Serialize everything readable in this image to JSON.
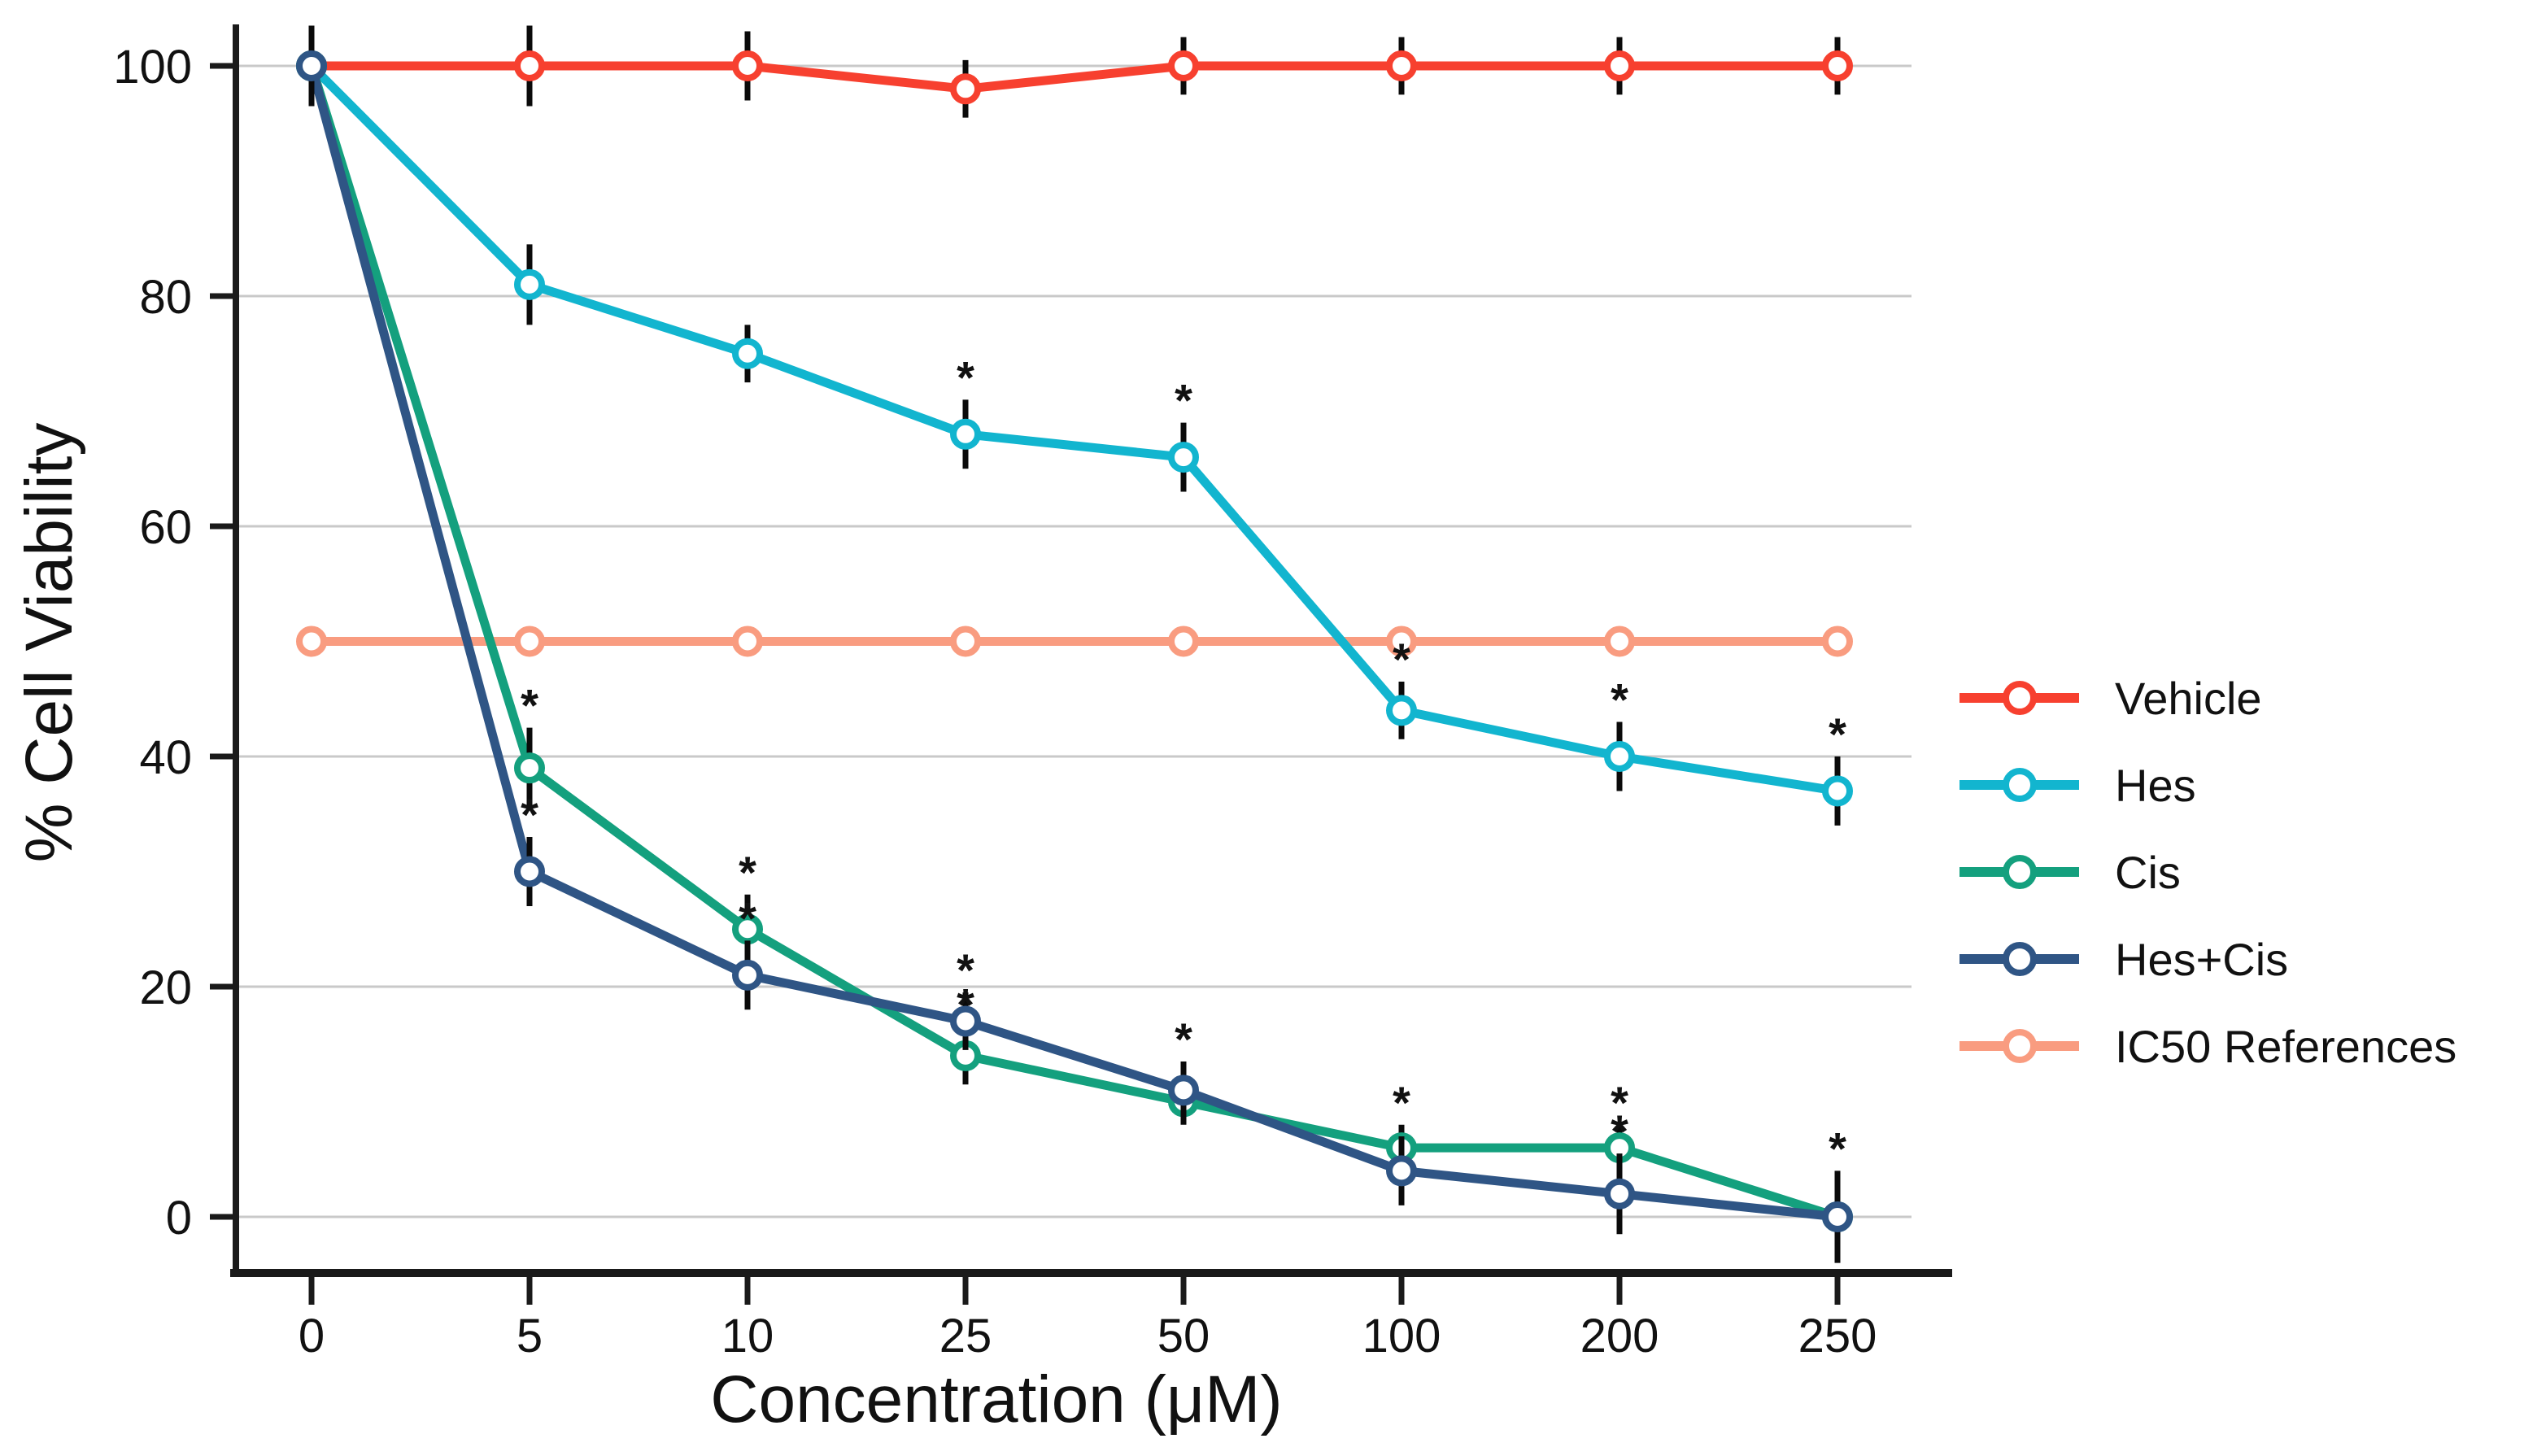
{
  "chart_data": {
    "type": "line",
    "title": "",
    "xlabel": "Concentration (μM)",
    "ylabel": "% Cell Viability",
    "x_categories": [
      "0",
      "5",
      "10",
      "25",
      "50",
      "100",
      "200",
      "250"
    ],
    "y_ticks": [
      0,
      20,
      40,
      60,
      80,
      100
    ],
    "ylim": [
      0,
      100
    ],
    "grid": "horizontal",
    "legend_position": "right",
    "significance_marker": "*",
    "colors": {
      "background": "#FFFFFF",
      "axis": "#1A1A1A",
      "grid": "#C9C9C9",
      "error_bar": "#0A0A0A",
      "star": "#111111"
    },
    "series": [
      {
        "name": "Vehicle",
        "color": "#F7402F",
        "values": [
          100,
          100,
          100,
          98,
          100,
          100,
          100,
          100
        ],
        "errors": [
          3.5,
          3.5,
          3,
          2.5,
          2.5,
          2.5,
          2.5,
          2.5
        ],
        "stars": []
      },
      {
        "name": "Hes",
        "color": "#12B5CF",
        "values": [
          100,
          81,
          75,
          68,
          66,
          44,
          40,
          37
        ],
        "errors": [
          3.5,
          3.5,
          2.5,
          3,
          3,
          2.5,
          3,
          3
        ],
        "stars": [
          3,
          4,
          5,
          6,
          7
        ]
      },
      {
        "name": "Cis",
        "color": "#14A07E",
        "values": [
          100,
          39,
          25,
          14,
          10,
          6,
          6,
          0
        ],
        "errors": [
          3.5,
          3.5,
          3,
          2.5,
          2,
          2,
          2,
          2.5
        ],
        "stars": [
          1,
          2,
          3,
          5,
          6
        ]
      },
      {
        "name": "Hes+Cis",
        "color": "#2F5585",
        "values": [
          100,
          30,
          21,
          17,
          11,
          4,
          2,
          0
        ],
        "errors": [
          3.5,
          3,
          3,
          2.5,
          2.5,
          3,
          3.5,
          4
        ],
        "stars": [
          1,
          2,
          3,
          4,
          6,
          7
        ]
      },
      {
        "name": "IC50 References",
        "color": "#F99C80",
        "values": [
          50,
          50,
          50,
          50,
          50,
          50,
          50,
          50
        ],
        "errors": null,
        "stars": []
      }
    ],
    "draw_order": [
      4,
      0,
      1,
      2,
      3
    ]
  }
}
